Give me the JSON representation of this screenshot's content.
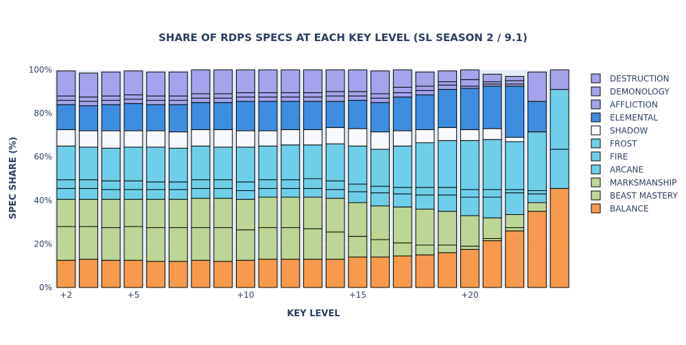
{
  "chart_data": {
    "type": "bar",
    "stacked": true,
    "title": "SHARE OF RDPS SPECS AT EACH KEY LEVEL (SL SEASON 2 / 9.1)",
    "xlabel": "KEY LEVEL",
    "ylabel": "SPEC SHARE (%)",
    "ylim": [
      0,
      100
    ],
    "y_ticks": [
      "0%",
      "20%",
      "40%",
      "60%",
      "80%",
      "100%"
    ],
    "x_ticks": [
      {
        "value": 2,
        "label": "+2"
      },
      {
        "value": 5,
        "label": "+5"
      },
      {
        "value": 10,
        "label": "+10"
      },
      {
        "value": 15,
        "label": "+15"
      },
      {
        "value": 20,
        "label": "+20"
      }
    ],
    "x": [
      2,
      3,
      4,
      5,
      6,
      7,
      8,
      9,
      10,
      11,
      12,
      13,
      14,
      15,
      16,
      17,
      18,
      19,
      20,
      21,
      22,
      23,
      24
    ],
    "legend_position": "right",
    "series": [
      {
        "name": "BALANCE",
        "color": "#f79a4d",
        "values": [
          12.5,
          13,
          12.5,
          12.5,
          12,
          12,
          12.5,
          12,
          12.5,
          13,
          13,
          13,
          13,
          14,
          14,
          14.5,
          15,
          16,
          17.5,
          21.5,
          26,
          35,
          45.5
        ]
      },
      {
        "name": "BEAST MASTERY",
        "color": "#bcd695",
        "values": [
          15.5,
          15,
          15,
          15.5,
          15.5,
          15.5,
          15,
          15.5,
          14,
          14.5,
          14.5,
          14,
          12.5,
          9.5,
          8,
          6,
          4.5,
          3.5,
          1.5,
          1,
          1.5,
          0,
          0
        ]
      },
      {
        "name": "MARKSMANSHIP",
        "color": "#bcd695",
        "values": [
          12.5,
          12.5,
          13,
          12.5,
          13,
          13,
          13.5,
          13.5,
          14,
          14,
          14,
          14.5,
          15.5,
          15.5,
          15.5,
          16.5,
          16.5,
          15.5,
          14,
          9.5,
          6,
          4,
          0
        ]
      },
      {
        "name": "ARCANE",
        "color": "#6fcfeb",
        "values": [
          5,
          5,
          4.5,
          4.5,
          4.5,
          4.5,
          4.5,
          4.5,
          4,
          4,
          4,
          4,
          4,
          5,
          6,
          6,
          6.5,
          7.5,
          8.5,
          9.5,
          10,
          4,
          0
        ]
      },
      {
        "name": "FIRE",
        "color": "#6fcfeb",
        "values": [
          4,
          4,
          4,
          4,
          3.5,
          3.5,
          4,
          4,
          4,
          4,
          4,
          4.5,
          4,
          3.5,
          3,
          3,
          3.5,
          3.5,
          3.5,
          3.5,
          1.5,
          1.5,
          18
        ]
      },
      {
        "name": "FROST",
        "color": "#6fcfeb",
        "values": [
          15.5,
          15,
          15,
          15.5,
          16,
          15.5,
          15.5,
          15,
          16,
          15.5,
          16,
          15.5,
          17,
          17.5,
          17,
          19,
          20.5,
          21.5,
          22.5,
          23,
          22,
          27,
          27.5
        ]
      },
      {
        "name": "SHADOW",
        "color": "#f8f9fd",
        "values": [
          7.5,
          7.5,
          8,
          7.5,
          7.5,
          7.5,
          7.5,
          8,
          7.5,
          7,
          7,
          7,
          7.5,
          8,
          8,
          7,
          6,
          6,
          5,
          5,
          2,
          0,
          0
        ]
      },
      {
        "name": "ELEMENTAL",
        "color": "#3f8de0",
        "values": [
          11.5,
          11.5,
          12,
          12.5,
          12,
          12.5,
          12.5,
          12.5,
          13.5,
          13.5,
          13,
          13,
          12,
          13,
          13.5,
          15.5,
          16,
          17.5,
          19,
          19.5,
          23.5,
          14,
          0
        ]
      },
      {
        "name": "AFFLICTION",
        "color": "#a3a4ec",
        "values": [
          2,
          2,
          2,
          2,
          2,
          2,
          2,
          2,
          2,
          2,
          2,
          2,
          2.5,
          2,
          2,
          2,
          2,
          2,
          1,
          1,
          1,
          0,
          0
        ]
      },
      {
        "name": "DEMONOLOGY",
        "color": "#a3a4ec",
        "values": [
          2,
          2,
          2,
          2,
          2,
          2,
          2,
          2,
          2,
          2,
          2,
          2,
          2,
          2,
          2,
          2.5,
          2,
          1.5,
          3,
          1,
          1.5,
          0,
          0
        ]
      },
      {
        "name": "DESTRUCTION",
        "color": "#a3a4ec",
        "values": [
          11.5,
          11,
          11,
          11,
          11,
          11,
          11,
          11,
          10.5,
          10.5,
          10.5,
          10.5,
          10,
          10,
          10.5,
          8,
          6.5,
          5,
          4.5,
          3.5,
          2,
          13.5,
          9
        ]
      }
    ]
  }
}
